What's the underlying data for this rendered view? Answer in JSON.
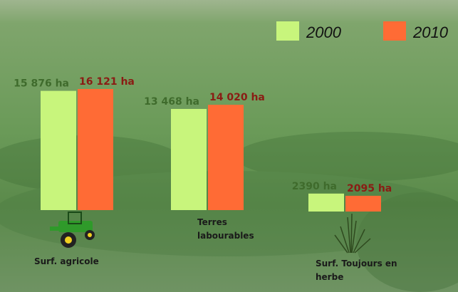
{
  "chart_data": {
    "type": "bar",
    "categories": [
      "Surf. agricole",
      "Terres labourables",
      "Surf. Toujours en herbe"
    ],
    "series": [
      {
        "name": "2000",
        "color": "#c8f57c",
        "label_color": "#3f6b2c",
        "values": [
          15876,
          13468,
          2390
        ],
        "value_labels": [
          "15 876 ha",
          "13 468 ha",
          "2390 ha"
        ]
      },
      {
        "name": "2010",
        "color": "#ff6b35",
        "label_color": "#8a1c14",
        "values": [
          16121,
          14020,
          2095
        ],
        "value_labels": [
          "16 121 ha",
          "14 020 ha",
          "2095 ha"
        ]
      }
    ]
  }
}
